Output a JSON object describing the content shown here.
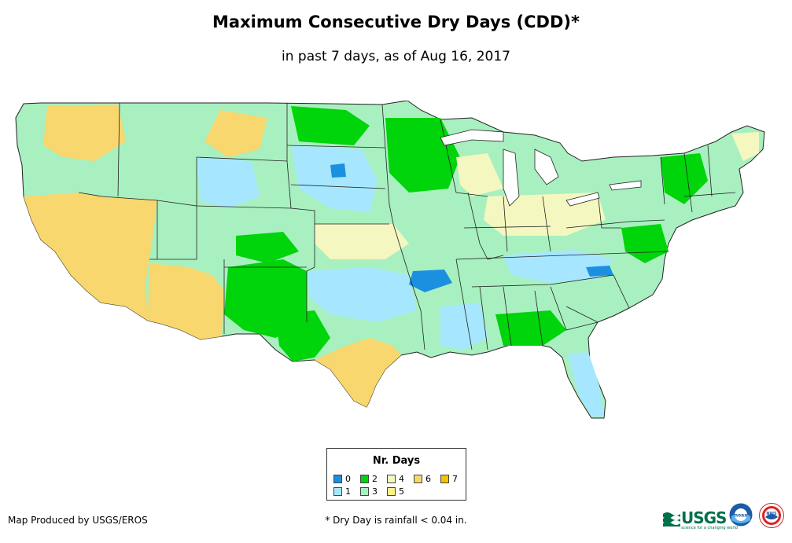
{
  "title": "Maximum Consecutive Dry Days (CDD)*",
  "subtitle": "in past 7 days, as of Aug 16, 2017",
  "legend": {
    "title": "Nr. Days",
    "items": [
      {
        "label": "0",
        "color": "#1b8fe0"
      },
      {
        "label": "1",
        "color": "#a6e7ff"
      },
      {
        "label": "2",
        "color": "#00d40a"
      },
      {
        "label": "3",
        "color": "#a8f0c0"
      },
      {
        "label": "4",
        "color": "#f5f7c0"
      },
      {
        "label": "5",
        "color": "#fff08a"
      },
      {
        "label": "6",
        "color": "#f7d76e"
      },
      {
        "label": "7",
        "color": "#f5c200"
      }
    ]
  },
  "credit": "Map Produced by USGS/EROS",
  "footnote": "* Dry Day is rainfall < 0.04 in.",
  "logos": {
    "usgs_text": "USGS",
    "usgs_tagline": "science for a changing world",
    "noaa_text": "noaa",
    "nws_text": "NWS"
  }
}
